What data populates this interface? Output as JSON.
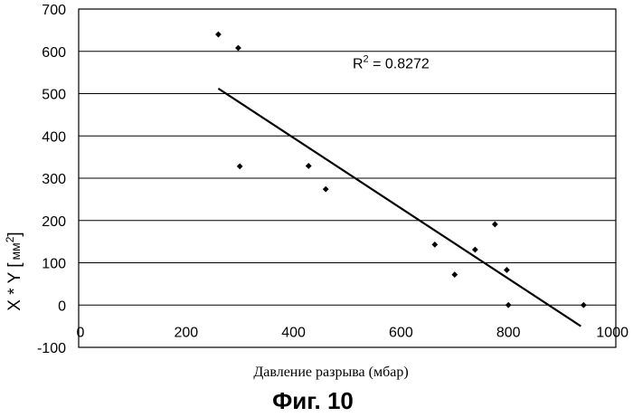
{
  "chart_data": {
    "type": "scatter",
    "xlabel": "Давление разрыва (мбар)",
    "ylabel_main": "X * Y [",
    "ylabel_unit": "мм",
    "ylabel_sup": "2",
    "ylabel_close": "]",
    "caption": "Фиг. 10",
    "xlim": [
      0,
      1000
    ],
    "ylim": [
      -100,
      700
    ],
    "x_ticks": [
      0,
      200,
      400,
      600,
      800,
      1000
    ],
    "x_tick_labels": [
      "0",
      "200",
      "400",
      "600",
      "800",
      "1000"
    ],
    "y_ticks": [
      -100,
      0,
      100,
      200,
      300,
      400,
      500,
      600,
      700
    ],
    "y_tick_labels": [
      "-100",
      "0",
      "100",
      "200",
      "300",
      "400",
      "500",
      "600",
      "700"
    ],
    "grid": true,
    "points": [
      {
        "x": 260,
        "y": 640
      },
      {
        "x": 297,
        "y": 608
      },
      {
        "x": 300,
        "y": 328
      },
      {
        "x": 428,
        "y": 329
      },
      {
        "x": 460,
        "y": 274
      },
      {
        "x": 663,
        "y": 143
      },
      {
        "x": 700,
        "y": 72
      },
      {
        "x": 738,
        "y": 131
      },
      {
        "x": 775,
        "y": 191
      },
      {
        "x": 797,
        "y": 83
      },
      {
        "x": 800,
        "y": 0
      },
      {
        "x": 940,
        "y": 0
      }
    ],
    "trendline": {
      "x": [
        260,
        935
      ],
      "y": [
        512,
        -50
      ]
    },
    "annotation": {
      "label": "R",
      "sup": "2",
      "value": " = 0.8272",
      "x": 510,
      "y": 560
    }
  }
}
